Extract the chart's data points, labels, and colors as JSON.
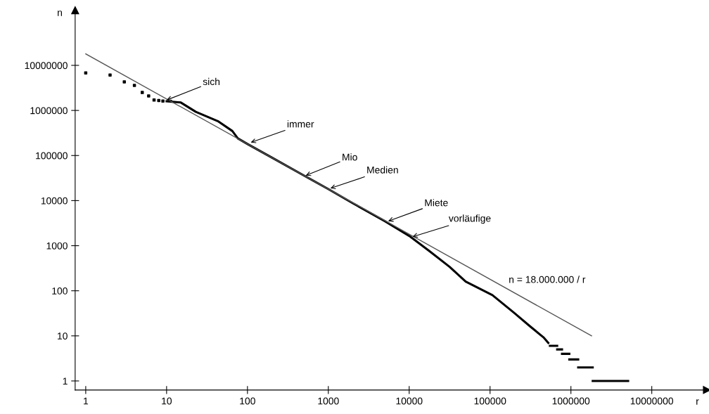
{
  "chart_data": {
    "type": "line",
    "xlabel": "r",
    "ylabel": "n",
    "log": "xy",
    "grid": false,
    "legend": false,
    "xlim": [
      0.74,
      48000000
    ],
    "ylim": [
      0.63,
      166000000
    ],
    "xticks": [
      1,
      10,
      100,
      1000,
      10000,
      100000,
      1000000,
      10000000
    ],
    "yticks": [
      1,
      10,
      100,
      1000,
      10000,
      100000,
      1000000,
      10000000
    ],
    "series": [
      {
        "type": "scatter",
        "color": "#000000",
        "marker": "square",
        "x": [
          1,
          2,
          3,
          4,
          5,
          6,
          7,
          8,
          9
        ],
        "values": [
          6800000,
          6100000,
          4300000,
          3600000,
          2500000,
          2100000,
          1700000,
          1660000,
          1620000
        ]
      },
      {
        "color": "#000000",
        "x": [
          10,
          15,
          23,
          43,
          65,
          76,
          100,
          200,
          500,
          1000,
          2000,
          5000,
          10000,
          17800,
          31600,
          50000,
          107000,
          200000,
          316000,
          457000,
          525000
        ],
        "values": [
          1600000,
          1500000,
          930000,
          580000,
          350000,
          240000,
          180000,
          90000,
          36000,
          18000,
          8800,
          3500,
          1650,
          760,
          340,
          160,
          80,
          32,
          16,
          9.3,
          7
        ]
      },
      {
        "color": "#000000",
        "x": [
          550000,
          676000,
          null,
          676000,
          776000,
          null,
          776000,
          955000,
          null,
          955000,
          1230000,
          null,
          1230000,
          1860000,
          null,
          1860000,
          5100000
        ],
        "values": [
          6,
          6,
          null,
          5,
          5,
          null,
          4,
          4,
          null,
          3,
          3,
          null,
          2,
          2,
          null,
          1,
          1
        ]
      },
      {
        "name": "n = 18.000.000 / r",
        "color": "#555555",
        "x": [
          1,
          1800000
        ],
        "values": [
          18000000,
          10
        ]
      }
    ],
    "annotations": [
      {
        "text": "sich",
        "x": 10,
        "y": 1700000
      },
      {
        "text": "immer",
        "x": 110,
        "y": 195000
      },
      {
        "text": "Mio",
        "x": 525,
        "y": 36000
      },
      {
        "text": "Medien",
        "x": 1060,
        "y": 18700
      },
      {
        "text": "Miete",
        "x": 5500,
        "y": 3500
      },
      {
        "text": "vorläufige",
        "x": 11000,
        "y": 1580
      }
    ]
  }
}
